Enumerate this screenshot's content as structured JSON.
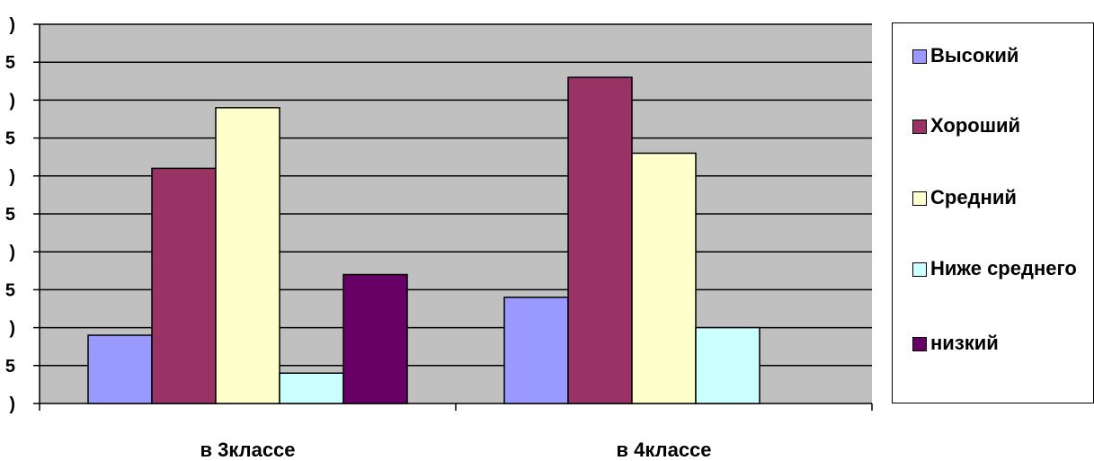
{
  "chart_data": {
    "type": "bar",
    "categories": [
      "в 3классе",
      "в 4классе"
    ],
    "series": [
      {
        "name": "Высокий",
        "color": "#9999ff",
        "values": [
          9,
          14
        ]
      },
      {
        "name": "Хороший",
        "color": "#993366",
        "values": [
          31,
          43
        ]
      },
      {
        "name": "Средний",
        "color": "#ffffcc",
        "values": [
          39,
          33
        ]
      },
      {
        "name": "Ниже среднего",
        "color": "#ccffff",
        "values": [
          4,
          10
        ]
      },
      {
        "name": "низкий",
        "color": "#660066",
        "values": [
          17,
          null
        ]
      }
    ],
    "ylim": [
      0,
      50
    ],
    "yticks": [
      0,
      5,
      10,
      15,
      20,
      25,
      30,
      35,
      40,
      45,
      50
    ],
    "ytick_labels": [
      ")",
      "5",
      ")",
      "5",
      ")",
      "5",
      ")",
      "5",
      ")",
      "5",
      ")"
    ],
    "plot_background": "#c0c0c0",
    "grid": true,
    "legend_position": "right",
    "title": "",
    "xlabel": "",
    "ylabel": ""
  }
}
